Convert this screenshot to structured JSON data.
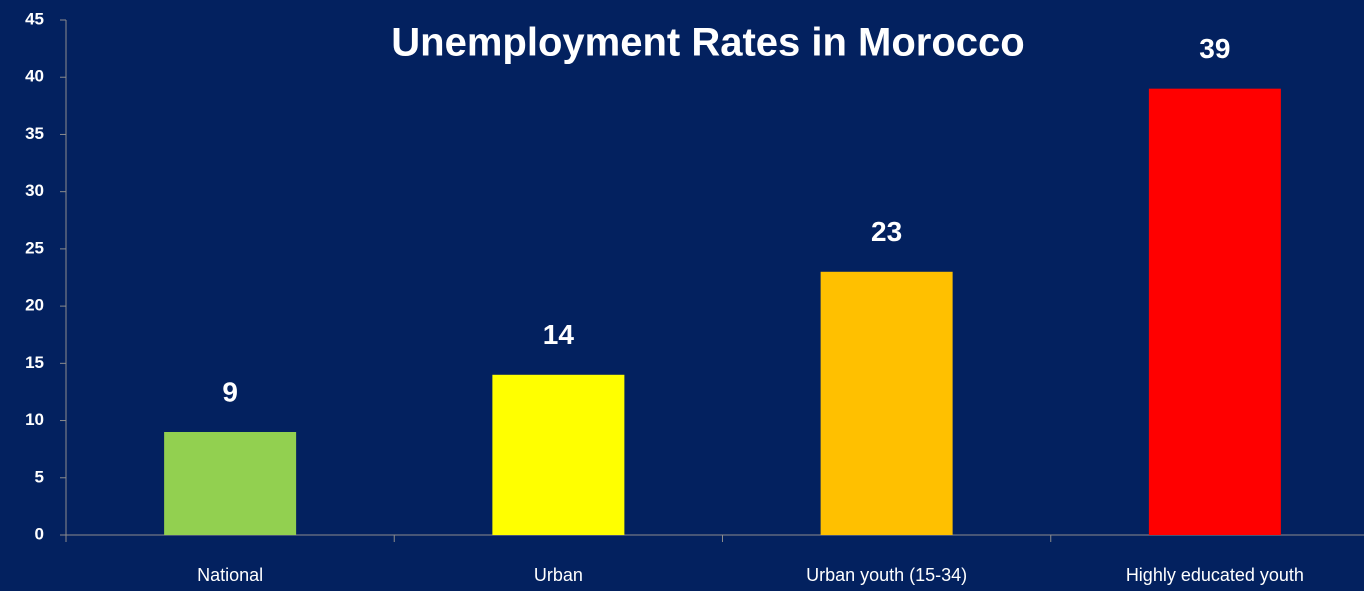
{
  "chart_data": {
    "type": "bar",
    "title": "Unemployment Rates in Morocco",
    "categories": [
      "National",
      "Urban",
      "Urban youth (15-34)",
      "Highly educated youth"
    ],
    "values": [
      9,
      14,
      23,
      39
    ],
    "colors": [
      "#92d050",
      "#ffff00",
      "#ffc000",
      "#ff0000"
    ],
    "ylim": [
      0,
      45
    ],
    "yticks": [
      0,
      5,
      10,
      15,
      20,
      25,
      30,
      35,
      40,
      45
    ],
    "grid": false
  }
}
